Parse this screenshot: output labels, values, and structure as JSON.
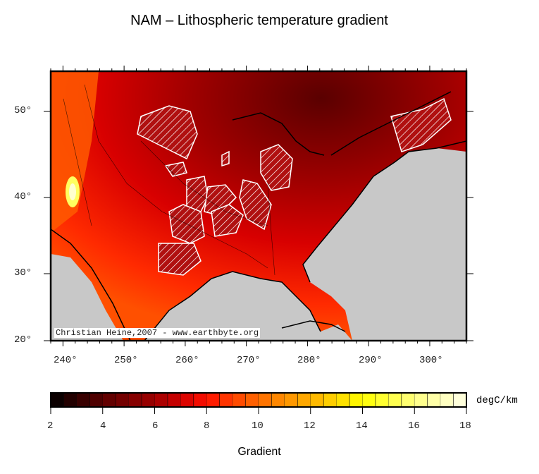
{
  "title": "NAM – Lithospheric temperature gradient",
  "map": {
    "lon_ticks": [
      "240°",
      "250°",
      "260°",
      "270°",
      "280°",
      "290°",
      "300°"
    ],
    "lat_ticks": [
      "20°",
      "30°",
      "40°",
      "50°"
    ],
    "lon_range": [
      238,
      306
    ],
    "lat_range": [
      20,
      55
    ],
    "credit": "Christian Heine,2007 - www.earthbyte.org",
    "ocean_color": "#c8c8c8"
  },
  "colorbar": {
    "ticks": [
      "2",
      "4",
      "6",
      "8",
      "10",
      "12",
      "14",
      "16",
      "18"
    ],
    "range": [
      2,
      18
    ],
    "step": 0.5,
    "unit": "degC/km",
    "label": "Gradient",
    "stops": [
      [
        2,
        "#000000"
      ],
      [
        4,
        "#5a0000"
      ],
      [
        6,
        "#a00000"
      ],
      [
        7,
        "#d00000"
      ],
      [
        8,
        "#ff1000"
      ],
      [
        9,
        "#ff4000"
      ],
      [
        10,
        "#ff6a00"
      ],
      [
        11,
        "#ff9000"
      ],
      [
        12,
        "#ffb000"
      ],
      [
        13,
        "#ffd800"
      ],
      [
        14,
        "#ffff00"
      ],
      [
        16,
        "#ffff80"
      ],
      [
        18,
        "#ffffe8"
      ]
    ]
  }
}
